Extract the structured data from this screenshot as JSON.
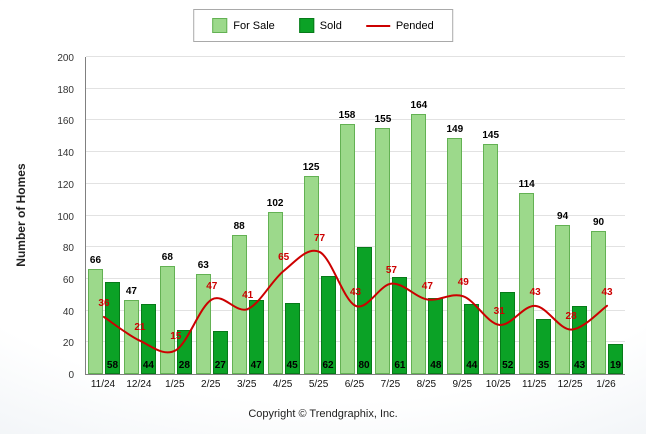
{
  "legend": {
    "for_sale": "For Sale",
    "sold": "Sold",
    "pended": "Pended"
  },
  "footer": "Copyright © Trendgraphix, Inc.",
  "chart_data": {
    "type": "bar",
    "title": "",
    "ylabel": "Number of Homes",
    "xlabel": "",
    "ylim": [
      0,
      200
    ],
    "ytick_step": 20,
    "grid": true,
    "legend_position": "top-center",
    "categories": [
      "11/24",
      "12/24",
      "1/25",
      "2/25",
      "3/25",
      "4/25",
      "5/25",
      "6/25",
      "7/25",
      "8/25",
      "9/25",
      "10/25",
      "11/25",
      "12/25",
      "1/26"
    ],
    "series": [
      {
        "name": "For Sale",
        "type": "bar",
        "color": "#9CD98B",
        "border_color": "#63b153",
        "label_color": "#000000",
        "values": [
          66,
          47,
          68,
          63,
          88,
          102,
          125,
          158,
          155,
          164,
          149,
          145,
          114,
          94,
          90
        ]
      },
      {
        "name": "Sold",
        "type": "bar",
        "color": "#0BA226",
        "border_color": "#077a19",
        "label_color": "#000000",
        "values": [
          58,
          44,
          28,
          27,
          47,
          45,
          62,
          80,
          61,
          48,
          44,
          52,
          35,
          43,
          19
        ]
      },
      {
        "name": "Pended",
        "type": "line",
        "color": "#CC0000",
        "label_color": "#CC0000",
        "values": [
          36,
          21,
          15,
          47,
          41,
          65,
          77,
          43,
          57,
          47,
          49,
          31,
          43,
          28,
          43
        ]
      }
    ]
  }
}
